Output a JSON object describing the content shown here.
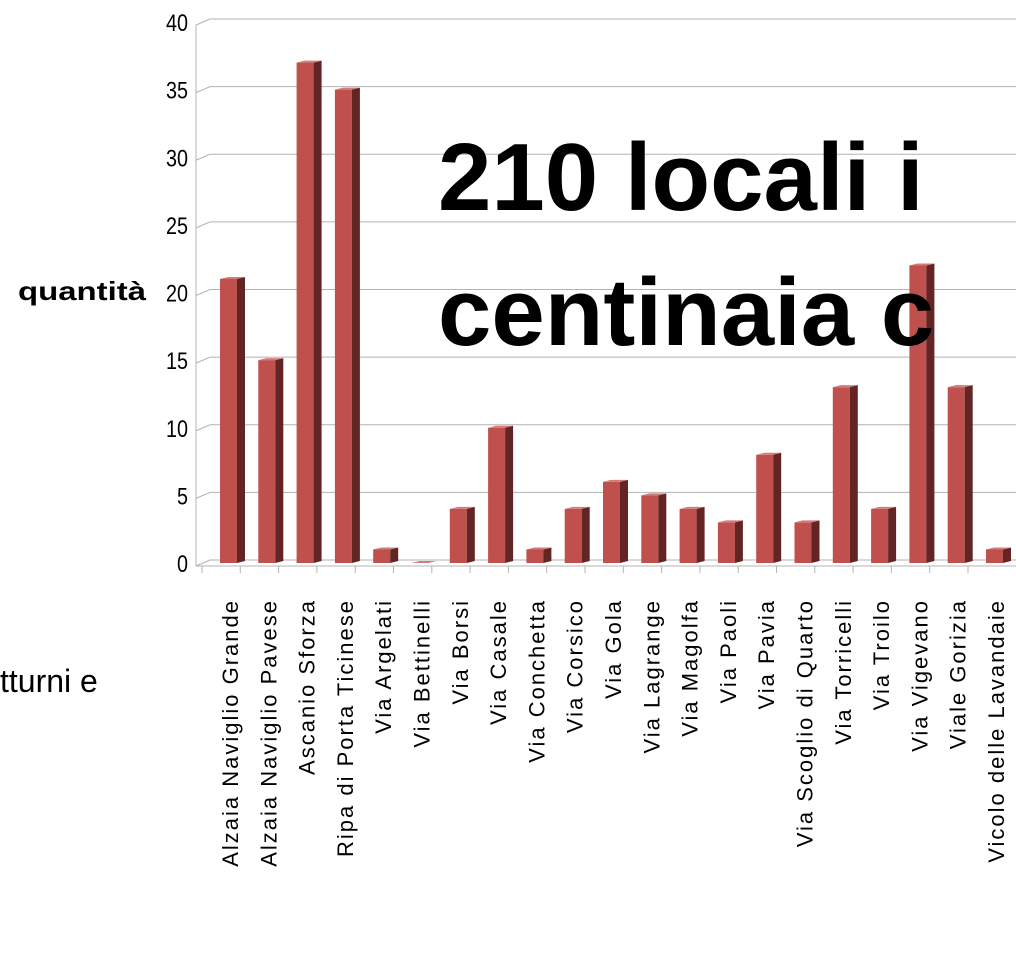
{
  "chart_data": {
    "type": "bar",
    "categories": [
      "Alzaia Naviglio Grande",
      "Alzaia Naviglio Pavese",
      "Ascanio Sforza",
      "Ripa di Porta Ticinese",
      "Via Argelati",
      "Via Bettinelli",
      "Via Borsi",
      "Via Casale",
      "Via Conchetta",
      "Via Corsico",
      "Via Gola",
      "Via Lagrange",
      "Via Magolfa",
      "Via Paoli",
      "Via Pavia",
      "Via Scoglio di Quarto",
      "Via Torricelli",
      "Via Troilo",
      "Via Vigevano",
      "Viale Gorizia",
      "Vicolo delle Lavandaie"
    ],
    "values": [
      21,
      15,
      37,
      35,
      1,
      0,
      4,
      10,
      1,
      4,
      6,
      5,
      4,
      3,
      8,
      3,
      13,
      4,
      22,
      13,
      1
    ],
    "color": "#c0504d",
    "y_label": "quantità",
    "ylim": [
      0,
      40
    ],
    "yticks": [
      0,
      5,
      10,
      15,
      20,
      25,
      30,
      35,
      40
    ],
    "grid": true,
    "annotations": [
      "210 locali i",
      "centinaia c",
      "tturni e"
    ]
  }
}
